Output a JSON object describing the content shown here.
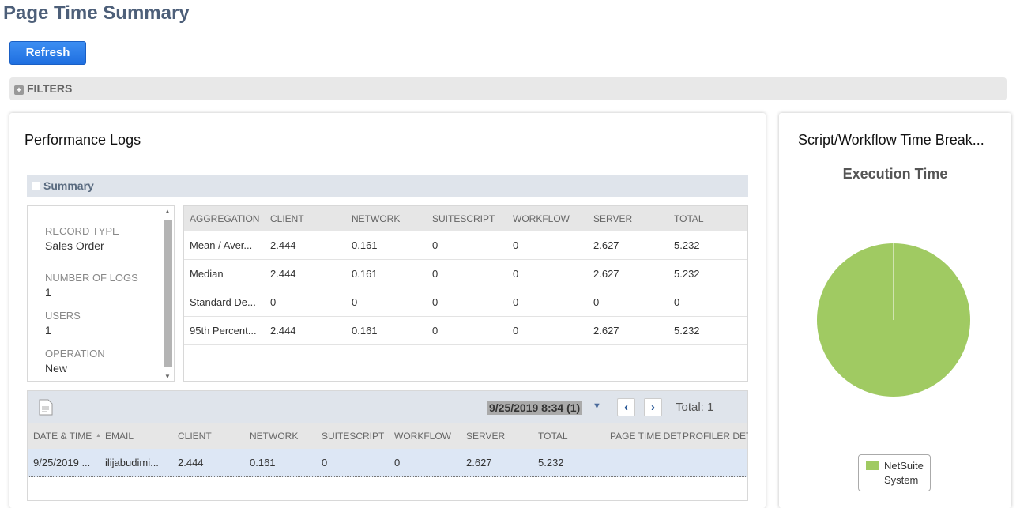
{
  "page": {
    "title": "Page Time Summary",
    "refresh_label": "Refresh",
    "filters_label": "FILTERS"
  },
  "performance_logs": {
    "title": "Performance Logs",
    "summary_label": "Summary",
    "details": [
      {
        "label": "RECORD TYPE",
        "value": "Sales Order"
      },
      {
        "label": "NUMBER OF LOGS",
        "value": "1"
      },
      {
        "label": "USERS",
        "value": "1"
      },
      {
        "label": "OPERATION",
        "value": "New"
      }
    ],
    "aggregation_table": {
      "headers": [
        "AGGREGATION",
        "CLIENT",
        "NETWORK",
        "SUITESCRIPT",
        "WORKFLOW",
        "SERVER",
        "TOTAL"
      ],
      "rows": [
        [
          "Mean / Aver...",
          "2.444",
          "0.161",
          "0",
          "0",
          "2.627",
          "5.232"
        ],
        [
          "Median",
          "2.444",
          "0.161",
          "0",
          "0",
          "2.627",
          "5.232"
        ],
        [
          "Standard De...",
          "0",
          "0",
          "0",
          "0",
          "0",
          "0"
        ],
        [
          "95th Percent...",
          "2.444",
          "0.161",
          "0",
          "0",
          "2.627",
          "5.232"
        ]
      ]
    },
    "log_grid": {
      "page_selector": "9/25/2019 8:34  (1)",
      "total_label": "Total: 1",
      "headers": [
        "DATE & TIME",
        "EMAIL",
        "CLIENT",
        "NETWORK",
        "SUITESCRIPT",
        "WORKFLOW",
        "SERVER",
        "TOTAL",
        "PAGE TIME DET",
        "PROFILER DETA"
      ],
      "rows": [
        [
          "9/25/2019 ...",
          "ilijabudimi...",
          "2.444",
          "0.161",
          "0",
          "0",
          "2.627",
          "5.232",
          "",
          ""
        ]
      ]
    }
  },
  "breakdown": {
    "title": "Script/Workflow Time Break...",
    "chart_data": {
      "type": "pie",
      "title": "Execution Time",
      "slices": [
        {
          "name": "NetSuite System",
          "value": 100,
          "color": "#a0ca62"
        }
      ],
      "legend": "bottom"
    }
  }
}
